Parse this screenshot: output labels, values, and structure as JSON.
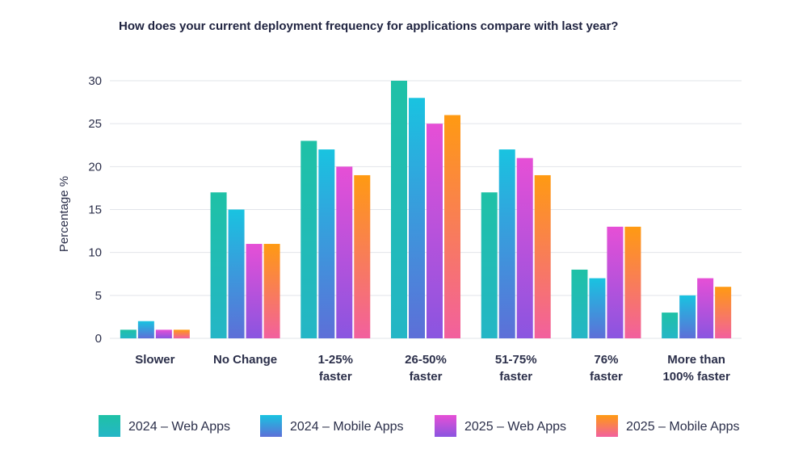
{
  "chart_data": {
    "type": "bar",
    "title": "How does your current deployment frequency for applications compare with last year?",
    "xlabel": "",
    "ylabel": "Percentage %",
    "ylim": [
      0,
      30
    ],
    "yticks": [
      "0",
      "5",
      "10",
      "15",
      "20",
      "25",
      "30"
    ],
    "grid": true,
    "legend_position": "bottom",
    "categories": [
      [
        "Slower"
      ],
      [
        "No Change"
      ],
      [
        "1-25%",
        "faster"
      ],
      [
        "26-50%",
        "faster"
      ],
      [
        "51-75%",
        "faster"
      ],
      [
        "76%",
        "faster"
      ],
      [
        "More than",
        "100% faster"
      ]
    ],
    "series": [
      {
        "name": "2024 – Web Apps",
        "colors": [
          "#1fc1a6",
          "#24b6c6"
        ],
        "values": [
          1,
          17,
          23,
          30,
          17,
          8,
          3
        ]
      },
      {
        "name": "2024 – Mobile Apps",
        "colors": [
          "#19c3e0",
          "#5d6fd8"
        ],
        "values": [
          2,
          15,
          22,
          28,
          22,
          7,
          5
        ]
      },
      {
        "name": "2025 – Web Apps",
        "colors": [
          "#e64fd6",
          "#8a55e0"
        ],
        "values": [
          1,
          11,
          20,
          25,
          21,
          13,
          7
        ]
      },
      {
        "name": "2025 – Mobile Apps",
        "colors": [
          "#ff9a12",
          "#f2609e"
        ],
        "values": [
          1,
          11,
          19,
          26,
          19,
          13,
          6
        ]
      }
    ]
  }
}
